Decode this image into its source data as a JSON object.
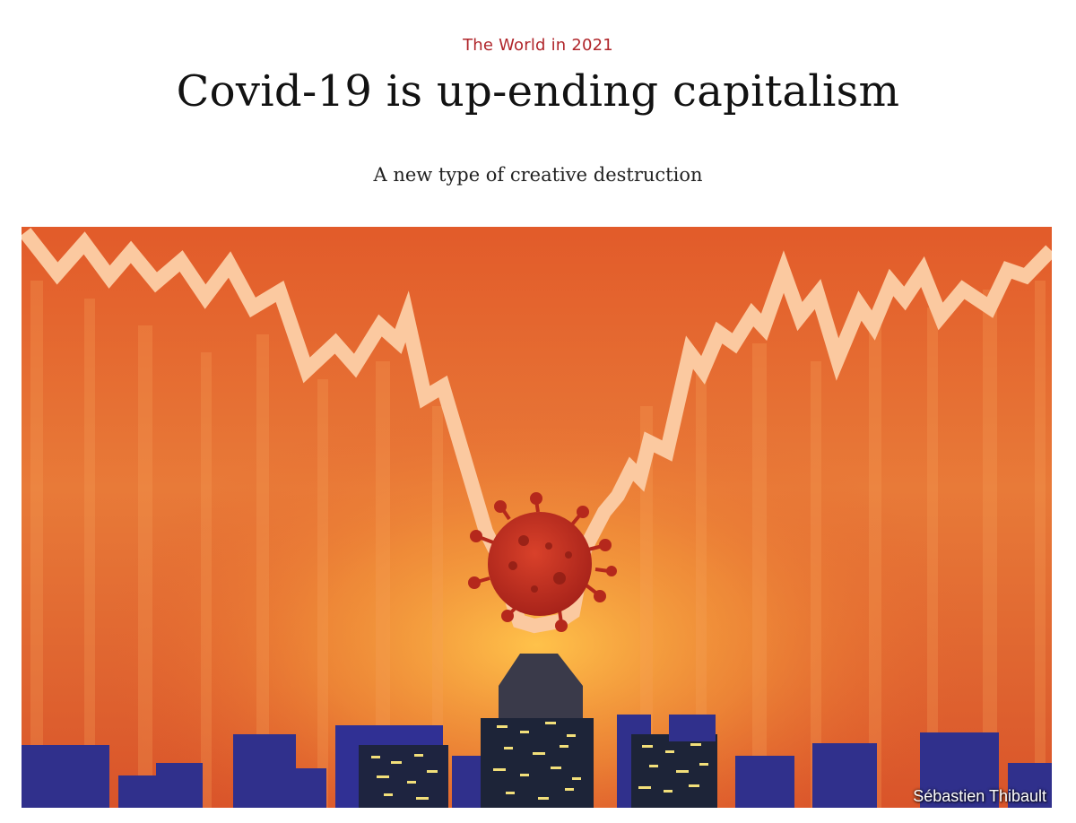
{
  "article": {
    "kicker": "The World in 2021",
    "headline": "Covid-19 is up-ending capitalism",
    "standfirst": "A new type of creative destruction"
  },
  "illustration": {
    "credit": "Sébastien Thibault"
  },
  "colors": {
    "kicker": "#b0262b",
    "sky_top": "#e0602c",
    "sky_glow": "#f5a13c",
    "line": "#fbc79c",
    "virus": "#c8311f",
    "buildings": "#2f2f8a",
    "windows": "#f3e07a"
  }
}
